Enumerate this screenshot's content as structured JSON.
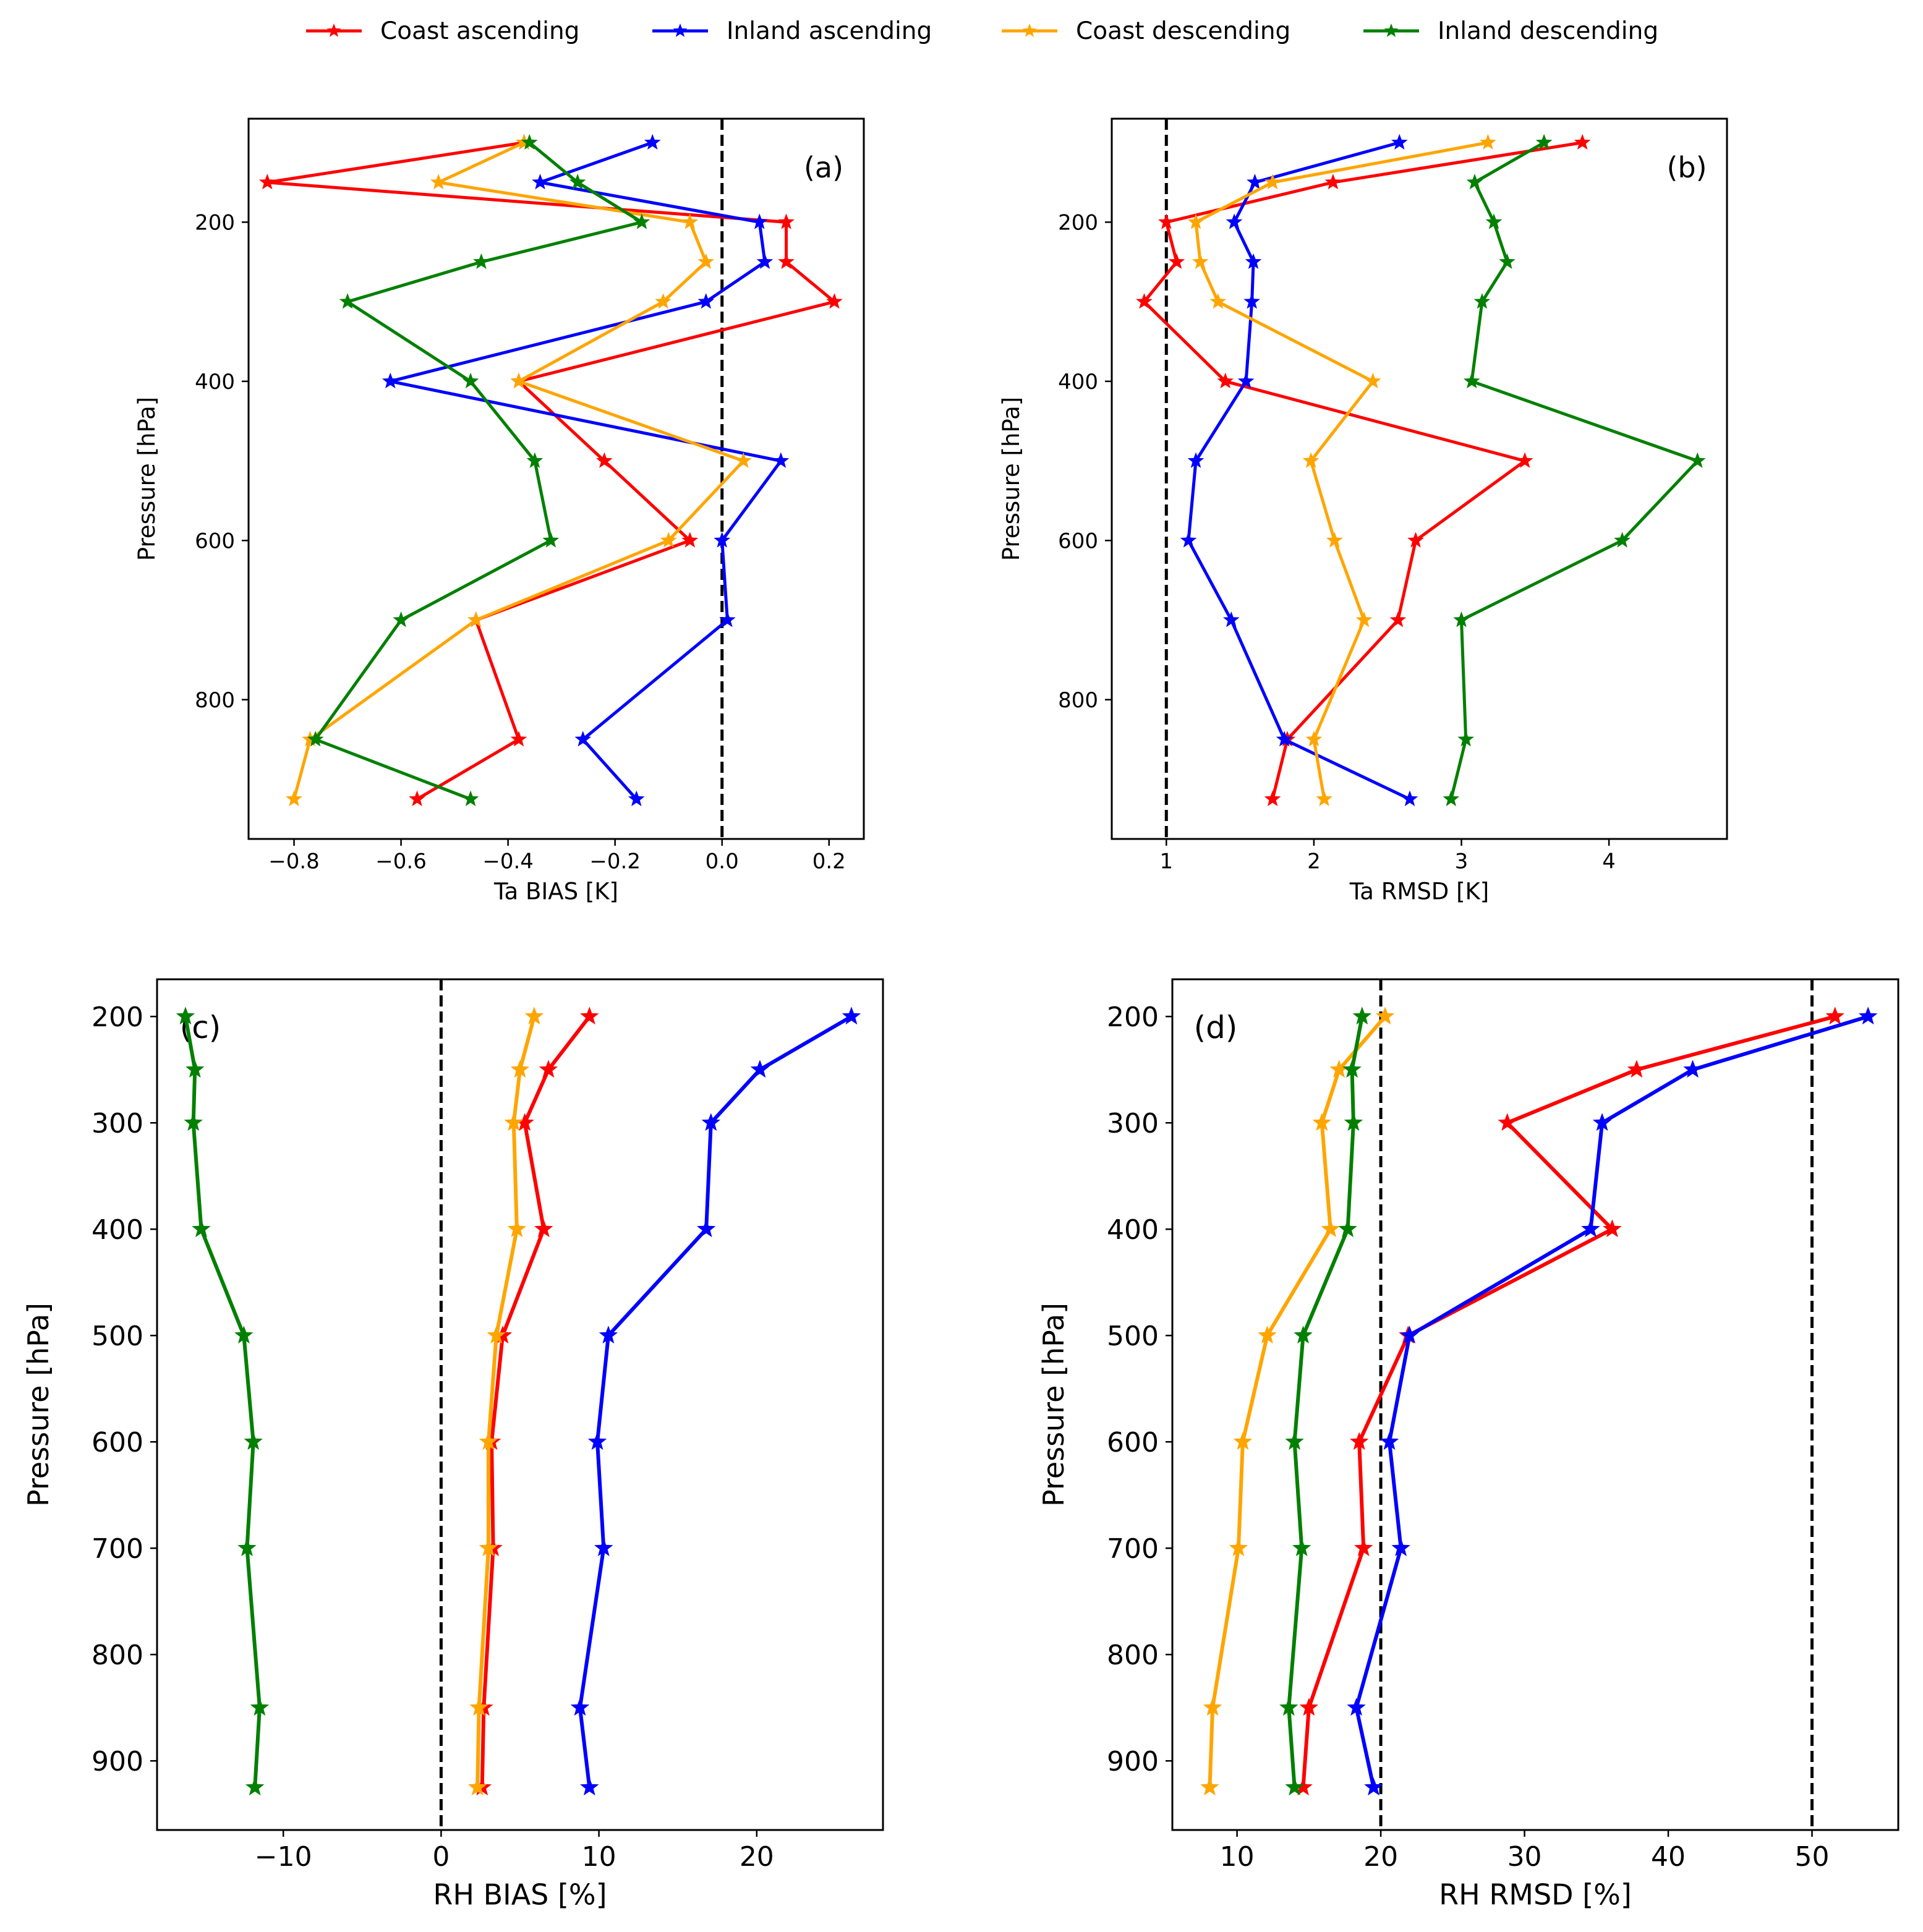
{
  "legend": {
    "entries": [
      {
        "label": "Coast ascending",
        "color": "#ff0000"
      },
      {
        "label": "Inland ascending",
        "color": "#0000ff"
      },
      {
        "label": "Coast descending",
        "color": "#ffa500"
      },
      {
        "label": "Inland descending",
        "color": "#008000"
      }
    ]
  },
  "chart_data": [
    {
      "type": "line",
      "panel_label": "(a)",
      "xlabel": "Ta BIAS [K]",
      "ylabel": "Pressure [hPa]",
      "xlim": [
        -0.885,
        0.265
      ],
      "ylim": [
        975,
        70
      ],
      "xticks": [
        -0.8,
        -0.6,
        -0.4,
        -0.2,
        0.0,
        0.2
      ],
      "xtick_labels": [
        "−0.8",
        "−0.6",
        "−0.4",
        "−0.2",
        "0.0",
        "0.2"
      ],
      "yticks": [
        200,
        400,
        600,
        800
      ],
      "ytick_labels": [
        "200",
        "400",
        "600",
        "800"
      ],
      "vlines": [
        0.0
      ],
      "series": [
        {
          "name": "Coast ascending",
          "pressure": [
            100,
            150,
            200,
            250,
            300,
            400,
            500,
            600,
            700,
            850,
            925
          ],
          "values": [
            -0.37,
            -0.85,
            0.12,
            0.12,
            0.21,
            -0.38,
            -0.22,
            -0.06,
            -0.46,
            -0.38,
            -0.57
          ]
        },
        {
          "name": "Inland ascending",
          "pressure": [
            100,
            150,
            200,
            250,
            300,
            400,
            500,
            600,
            700,
            850,
            925
          ],
          "values": [
            -0.13,
            -0.34,
            0.07,
            0.08,
            -0.03,
            -0.62,
            0.11,
            0.0,
            0.01,
            -0.26,
            -0.16
          ]
        },
        {
          "name": "Coast descending",
          "pressure": [
            100,
            150,
            200,
            250,
            300,
            400,
            500,
            600,
            700,
            850,
            925
          ],
          "values": [
            -0.37,
            -0.53,
            -0.06,
            -0.03,
            -0.11,
            -0.38,
            0.04,
            -0.1,
            -0.46,
            -0.77,
            -0.8
          ]
        },
        {
          "name": "Inland descending",
          "pressure": [
            100,
            150,
            200,
            250,
            300,
            400,
            500,
            600,
            700,
            850,
            925
          ],
          "values": [
            -0.36,
            -0.27,
            -0.15,
            -0.45,
            -0.7,
            -0.47,
            -0.35,
            -0.32,
            -0.6,
            -0.76,
            -0.47
          ]
        }
      ]
    },
    {
      "type": "line",
      "panel_label": "(b)",
      "xlabel": "Ta RMSD [K]",
      "ylabel": "Pressure [hPa]",
      "xlim": [
        0.63,
        4.8
      ],
      "ylim": [
        975,
        70
      ],
      "xticks": [
        1,
        2,
        3,
        4
      ],
      "xtick_labels": [
        "1",
        "2",
        "3",
        "4"
      ],
      "yticks": [
        200,
        400,
        600,
        800
      ],
      "ytick_labels": [
        "200",
        "400",
        "600",
        "800"
      ],
      "vlines": [
        1.0
      ],
      "series": [
        {
          "name": "Coast ascending",
          "pressure": [
            100,
            150,
            200,
            250,
            300,
            400,
            500,
            600,
            700,
            850,
            925
          ],
          "values": [
            3.82,
            2.13,
            1.0,
            1.07,
            0.85,
            1.4,
            3.43,
            2.69,
            2.57,
            1.82,
            1.72
          ]
        },
        {
          "name": "Inland ascending",
          "pressure": [
            100,
            150,
            200,
            250,
            300,
            400,
            500,
            600,
            700,
            850,
            925
          ],
          "values": [
            2.58,
            1.6,
            1.46,
            1.59,
            1.58,
            1.54,
            1.2,
            1.15,
            1.44,
            1.8,
            2.65
          ]
        },
        {
          "name": "Coast descending",
          "pressure": [
            100,
            150,
            200,
            250,
            300,
            400,
            500,
            600,
            700,
            850,
            925
          ],
          "values": [
            3.18,
            1.72,
            1.2,
            1.23,
            1.35,
            2.4,
            1.98,
            2.14,
            2.34,
            2.0,
            2.07
          ]
        },
        {
          "name": "Inland descending",
          "pressure": [
            100,
            150,
            200,
            250,
            300,
            400,
            500,
            600,
            700,
            850,
            925
          ],
          "values": [
            3.56,
            3.09,
            3.22,
            3.31,
            3.14,
            3.07,
            4.6,
            4.09,
            3.0,
            3.03,
            2.93
          ]
        }
      ]
    },
    {
      "type": "line",
      "panel_label": "(c)",
      "xlabel": "RH BIAS [%]",
      "ylabel": "Pressure [hPa]",
      "xlim": [
        -18,
        28
      ],
      "ylim": [
        965,
        165
      ],
      "xticks": [
        -10,
        0,
        10,
        20
      ],
      "xtick_labels": [
        "−10",
        "0",
        "10",
        "20"
      ],
      "yticks": [
        200,
        300,
        400,
        500,
        600,
        700,
        800,
        900
      ],
      "ytick_labels": [
        "200",
        "300",
        "400",
        "500",
        "600",
        "700",
        "800",
        "900"
      ],
      "vlines": [
        0
      ],
      "series": [
        {
          "name": "Coast ascending",
          "pressure": [
            200,
            250,
            300,
            400,
            500,
            600,
            700,
            850,
            925
          ],
          "values": [
            9.4,
            6.8,
            5.3,
            6.5,
            3.9,
            3.2,
            3.3,
            2.7,
            2.6
          ]
        },
        {
          "name": "Inland ascending",
          "pressure": [
            200,
            250,
            300,
            400,
            500,
            600,
            700,
            850,
            925
          ],
          "values": [
            26.0,
            20.2,
            17.1,
            16.8,
            10.6,
            9.9,
            10.3,
            8.8,
            9.4
          ]
        },
        {
          "name": "Coast descending",
          "pressure": [
            200,
            250,
            300,
            400,
            500,
            600,
            700,
            850,
            925
          ],
          "values": [
            5.9,
            5.0,
            4.6,
            4.8,
            3.5,
            3.0,
            3.0,
            2.4,
            2.3
          ]
        },
        {
          "name": "Inland descending",
          "pressure": [
            200,
            250,
            300,
            400,
            500,
            600,
            700,
            850,
            925
          ],
          "values": [
            -16.2,
            -15.6,
            -15.7,
            -15.2,
            -12.5,
            -11.9,
            -12.3,
            -11.5,
            -11.8
          ]
        }
      ]
    },
    {
      "type": "line",
      "panel_label": "(d)",
      "xlabel": "RH RMSD [%]",
      "ylabel": "Pressure [hPa]",
      "xlim": [
        5.5,
        56
      ],
      "ylim": [
        965,
        165
      ],
      "xticks": [
        10,
        20,
        30,
        40,
        50
      ],
      "xtick_labels": [
        "10",
        "20",
        "30",
        "40",
        "50"
      ],
      "yticks": [
        200,
        300,
        400,
        500,
        600,
        700,
        800,
        900
      ],
      "ytick_labels": [
        "200",
        "300",
        "400",
        "500",
        "600",
        "700",
        "800",
        "900"
      ],
      "vlines": [
        20,
        50
      ],
      "series": [
        {
          "name": "Coast ascending",
          "pressure": [
            200,
            250,
            300,
            400,
            500,
            600,
            700,
            850,
            925
          ],
          "values": [
            51.6,
            37.8,
            28.8,
            36.1,
            21.9,
            18.5,
            18.8,
            15.0,
            14.6
          ]
        },
        {
          "name": "Inland ascending",
          "pressure": [
            200,
            250,
            300,
            400,
            500,
            600,
            700,
            850,
            925
          ],
          "values": [
            53.9,
            41.7,
            35.4,
            34.6,
            22.0,
            20.6,
            21.4,
            18.3,
            19.5
          ]
        },
        {
          "name": "Coast descending",
          "pressure": [
            200,
            250,
            300,
            400,
            500,
            600,
            700,
            850,
            925
          ],
          "values": [
            20.3,
            17.1,
            15.9,
            16.5,
            12.1,
            10.4,
            10.1,
            8.3,
            8.1
          ]
        },
        {
          "name": "Inland descending",
          "pressure": [
            200,
            250,
            300,
            400,
            500,
            600,
            700,
            850,
            925
          ],
          "values": [
            18.7,
            18.0,
            18.1,
            17.7,
            14.6,
            14.0,
            14.5,
            13.6,
            14.0
          ]
        }
      ]
    }
  ]
}
